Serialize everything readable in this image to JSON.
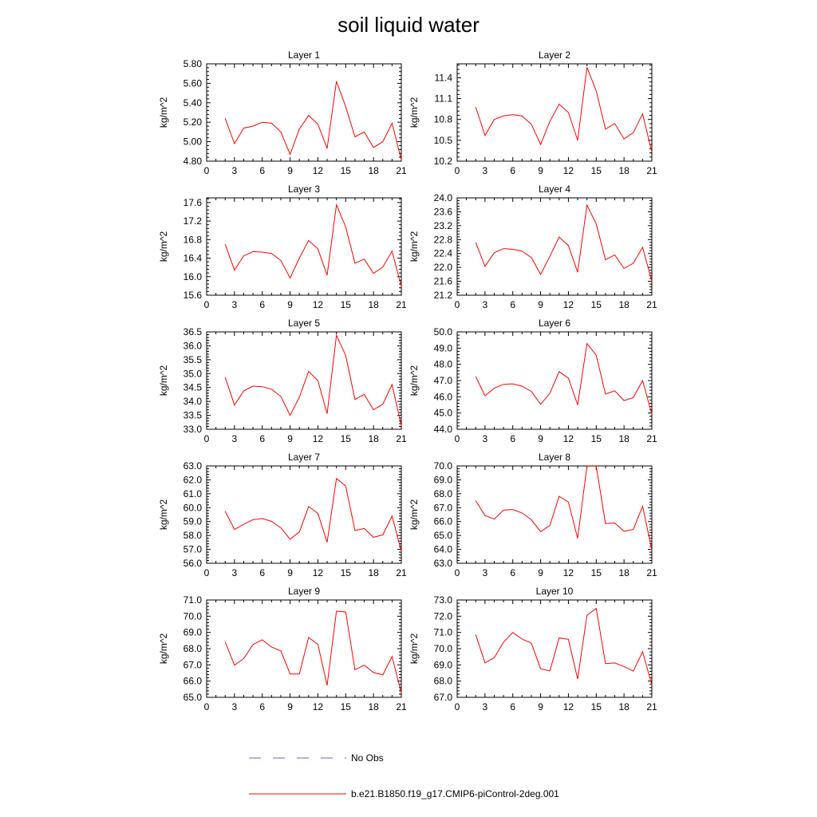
{
  "title": "soil liquid water",
  "legend": [
    {
      "label": "No Obs",
      "color": "#6666cc",
      "dash": "dashed"
    },
    {
      "label": "b.e21.B1850.f19_g17.CMIP6-piControl-2deg.001",
      "color": "#ff0000",
      "dash": "solid"
    }
  ],
  "colors": {
    "series": "#ff0000",
    "obs": "#6666cc"
  },
  "chart_data": [
    {
      "type": "line",
      "title": "Layer 1",
      "xlabel": "",
      "ylabel": "kg/m^2",
      "xlim": [
        0,
        21
      ],
      "ylim": [
        4.8,
        5.8
      ],
      "xticks": [
        "0",
        "3",
        "6",
        "9",
        "12",
        "15",
        "18",
        "21"
      ],
      "yticks": [
        "4.80",
        "5.00",
        "5.20",
        "5.40",
        "5.60",
        "5.80"
      ],
      "series": [
        {
          "name": "b.e21.B1850.f19_g17.CMIP6-piControl-2deg.001",
          "x": [
            2,
            3,
            4,
            5,
            6,
            7,
            8,
            9,
            10,
            11,
            12,
            13,
            14,
            15,
            16,
            17,
            18,
            19,
            20,
            21
          ],
          "y": [
            5.24,
            4.98,
            5.14,
            5.16,
            5.2,
            5.19,
            5.1,
            4.87,
            5.13,
            5.27,
            5.18,
            4.93,
            5.62,
            5.36,
            5.05,
            5.1,
            4.94,
            5.0,
            5.19,
            4.81
          ]
        }
      ]
    },
    {
      "type": "line",
      "title": "Layer 2",
      "xlabel": "",
      "ylabel": "kg/m^2",
      "xlim": [
        0,
        21
      ],
      "ylim": [
        10.2,
        11.6
      ],
      "xticks": [
        "0",
        "3",
        "6",
        "9",
        "12",
        "15",
        "18",
        "21"
      ],
      "yticks": [
        "10.2",
        "10.5",
        "10.8",
        "11.1",
        "11.4"
      ],
      "series": [
        {
          "name": "b.e21.B1850.f19_g17.CMIP6-piControl-2deg.001",
          "x": [
            2,
            3,
            4,
            5,
            6,
            7,
            8,
            9,
            10,
            11,
            12,
            13,
            14,
            15,
            16,
            17,
            18,
            19,
            20,
            21
          ],
          "y": [
            10.98,
            10.57,
            10.8,
            10.85,
            10.87,
            10.85,
            10.73,
            10.44,
            10.77,
            11.02,
            10.9,
            10.5,
            11.55,
            11.21,
            10.66,
            10.74,
            10.52,
            10.61,
            10.88,
            10.33
          ]
        }
      ]
    },
    {
      "type": "line",
      "title": "Layer 3",
      "xlabel": "",
      "ylabel": "kg/m^2",
      "xlim": [
        0,
        21
      ],
      "ylim": [
        15.6,
        17.7
      ],
      "xticks": [
        "0",
        "3",
        "6",
        "9",
        "12",
        "15",
        "18",
        "21"
      ],
      "yticks": [
        "15.6",
        "16.0",
        "16.4",
        "16.8",
        "17.2",
        "17.6"
      ],
      "series": [
        {
          "name": "b.e21.B1850.f19_g17.CMIP6-piControl-2deg.001",
          "x": [
            2,
            3,
            4,
            5,
            6,
            7,
            8,
            9,
            10,
            11,
            12,
            13,
            14,
            15,
            16,
            17,
            18,
            19,
            20,
            21
          ],
          "y": [
            16.7,
            16.14,
            16.45,
            16.54,
            16.53,
            16.5,
            16.35,
            15.97,
            16.4,
            16.78,
            16.6,
            16.03,
            17.55,
            17.07,
            16.29,
            16.38,
            16.07,
            16.21,
            16.55,
            15.79
          ]
        }
      ]
    },
    {
      "type": "line",
      "title": "Layer 4",
      "xlabel": "",
      "ylabel": "kg/m^2",
      "xlim": [
        0,
        21
      ],
      "ylim": [
        21.2,
        24.0
      ],
      "xticks": [
        "0",
        "3",
        "6",
        "9",
        "12",
        "15",
        "18",
        "21"
      ],
      "yticks": [
        "21.2",
        "21.6",
        "22.0",
        "22.4",
        "22.8",
        "23.2",
        "23.6",
        "24.0"
      ],
      "series": [
        {
          "name": "b.e21.B1850.f19_g17.CMIP6-piControl-2deg.001",
          "x": [
            2,
            3,
            4,
            5,
            6,
            7,
            8,
            9,
            10,
            11,
            12,
            13,
            14,
            15,
            16,
            17,
            18,
            19,
            20,
            21
          ],
          "y": [
            22.72,
            22.03,
            22.42,
            22.54,
            22.52,
            22.47,
            22.28,
            21.8,
            22.32,
            22.87,
            22.63,
            21.86,
            23.79,
            23.25,
            22.22,
            22.36,
            21.97,
            22.12,
            22.58,
            21.6
          ]
        }
      ]
    },
    {
      "type": "line",
      "title": "Layer 5",
      "xlabel": "",
      "ylabel": "kg/m^2",
      "xlim": [
        0,
        21
      ],
      "ylim": [
        33.0,
        36.5
      ],
      "xticks": [
        "0",
        "3",
        "6",
        "9",
        "12",
        "15",
        "18",
        "21"
      ],
      "yticks": [
        "33.0",
        "33.5",
        "34.0",
        "34.5",
        "35.0",
        "35.5",
        "36.0",
        "36.5"
      ],
      "series": [
        {
          "name": "b.e21.B1850.f19_g17.CMIP6-piControl-2deg.001",
          "x": [
            2,
            3,
            4,
            5,
            6,
            7,
            8,
            9,
            10,
            11,
            12,
            13,
            14,
            15,
            16,
            17,
            18,
            19,
            20,
            21
          ],
          "y": [
            34.87,
            33.87,
            34.38,
            34.55,
            34.53,
            34.44,
            34.18,
            33.5,
            34.15,
            35.08,
            34.75,
            33.56,
            36.38,
            35.65,
            34.07,
            34.25,
            33.7,
            33.9,
            34.61,
            33.12
          ]
        }
      ]
    },
    {
      "type": "line",
      "title": "Layer 6",
      "xlabel": "",
      "ylabel": "kg/m^2",
      "xlim": [
        0,
        21
      ],
      "ylim": [
        44.0,
        50.0
      ],
      "xticks": [
        "0",
        "3",
        "6",
        "9",
        "12",
        "15",
        "18",
        "21"
      ],
      "yticks": [
        "44.0",
        "45.0",
        "46.0",
        "47.0",
        "48.0",
        "49.0",
        "50.0"
      ],
      "series": [
        {
          "name": "b.e21.B1850.f19_g17.CMIP6-piControl-2deg.001",
          "x": [
            2,
            3,
            4,
            5,
            6,
            7,
            8,
            9,
            10,
            11,
            12,
            13,
            14,
            15,
            16,
            17,
            18,
            19,
            20,
            21
          ],
          "y": [
            47.25,
            46.06,
            46.53,
            46.77,
            46.8,
            46.65,
            46.33,
            45.54,
            46.22,
            47.55,
            47.15,
            45.5,
            49.28,
            48.56,
            46.17,
            46.37,
            45.77,
            45.95,
            47.0,
            44.93
          ]
        }
      ]
    },
    {
      "type": "line",
      "title": "Layer 7",
      "xlabel": "",
      "ylabel": "kg/m^2",
      "xlim": [
        0,
        21
      ],
      "ylim": [
        56.0,
        63.0
      ],
      "xticks": [
        "0",
        "3",
        "6",
        "9",
        "12",
        "15",
        "18",
        "21"
      ],
      "yticks": [
        "56.0",
        "57.0",
        "58.0",
        "59.0",
        "60.0",
        "61.0",
        "62.0",
        "63.0"
      ],
      "series": [
        {
          "name": "b.e21.B1850.f19_g17.CMIP6-piControl-2deg.001",
          "x": [
            2,
            3,
            4,
            5,
            6,
            7,
            8,
            9,
            10,
            11,
            12,
            13,
            14,
            15,
            16,
            17,
            18,
            19,
            20,
            21
          ],
          "y": [
            59.75,
            58.43,
            58.8,
            59.14,
            59.22,
            59.01,
            58.55,
            57.73,
            58.25,
            60.08,
            59.6,
            57.51,
            62.1,
            61.56,
            58.36,
            58.5,
            57.87,
            58.04,
            59.4,
            56.85
          ]
        }
      ]
    },
    {
      "type": "line",
      "title": "Layer 8",
      "xlabel": "",
      "ylabel": "kg/m^2",
      "xlim": [
        0,
        21
      ],
      "ylim": [
        63.0,
        70.0
      ],
      "xticks": [
        "0",
        "3",
        "6",
        "9",
        "12",
        "15",
        "18",
        "21"
      ],
      "yticks": [
        "63.0",
        "64.0",
        "65.0",
        "66.0",
        "67.0",
        "68.0",
        "69.0",
        "70.0"
      ],
      "series": [
        {
          "name": "b.e21.B1850.f19_g17.CMIP6-piControl-2deg.001",
          "x": [
            2,
            3,
            4,
            5,
            6,
            7,
            8,
            9,
            10,
            11,
            12,
            13,
            14,
            15,
            16,
            17,
            18,
            19,
            20,
            21
          ],
          "y": [
            67.5,
            66.43,
            66.18,
            66.82,
            66.87,
            66.62,
            66.13,
            65.27,
            65.72,
            67.82,
            67.4,
            64.8,
            69.98,
            69.98,
            65.86,
            65.9,
            65.3,
            65.43,
            67.1,
            63.95
          ]
        }
      ]
    },
    {
      "type": "line",
      "title": "Layer 9",
      "xlabel": "",
      "ylabel": "kg/m^2",
      "xlim": [
        0,
        21
      ],
      "ylim": [
        65.0,
        71.0
      ],
      "xticks": [
        "0",
        "3",
        "6",
        "9",
        "12",
        "15",
        "18",
        "21"
      ],
      "yticks": [
        "65.0",
        "66.0",
        "67.0",
        "68.0",
        "69.0",
        "70.0",
        "71.0"
      ],
      "series": [
        {
          "name": "b.e21.B1850.f19_g17.CMIP6-piControl-2deg.001",
          "x": [
            2,
            3,
            4,
            5,
            6,
            7,
            8,
            9,
            10,
            11,
            12,
            13,
            14,
            15,
            16,
            17,
            18,
            19,
            20,
            21
          ],
          "y": [
            68.42,
            66.98,
            67.39,
            68.25,
            68.55,
            68.1,
            67.86,
            66.44,
            66.44,
            68.69,
            68.27,
            65.74,
            70.31,
            70.26,
            66.7,
            66.98,
            66.53,
            66.38,
            67.52,
            65.26
          ]
        }
      ]
    },
    {
      "type": "line",
      "title": "Layer 10",
      "xlabel": "",
      "ylabel": "kg/m^2",
      "xlim": [
        0,
        21
      ],
      "ylim": [
        67.0,
        73.0
      ],
      "xticks": [
        "0",
        "3",
        "6",
        "9",
        "12",
        "15",
        "18",
        "21"
      ],
      "yticks": [
        "67.0",
        "68.0",
        "69.0",
        "70.0",
        "71.0",
        "72.0",
        "73.0"
      ],
      "series": [
        {
          "name": "b.e21.B1850.f19_g17.CMIP6-piControl-2deg.001",
          "x": [
            2,
            3,
            4,
            5,
            6,
            7,
            8,
            9,
            10,
            11,
            12,
            13,
            14,
            15,
            16,
            17,
            18,
            19,
            20,
            21
          ],
          "y": [
            70.87,
            69.12,
            69.45,
            70.4,
            71.0,
            70.59,
            70.34,
            68.76,
            68.63,
            70.66,
            70.58,
            68.13,
            72.06,
            72.48,
            69.08,
            69.12,
            68.9,
            68.62,
            69.81,
            67.76
          ]
        }
      ]
    }
  ]
}
